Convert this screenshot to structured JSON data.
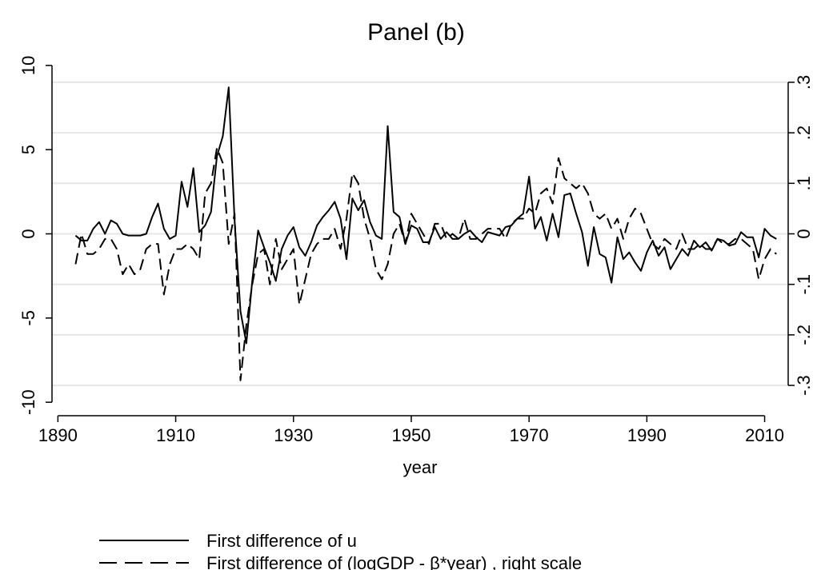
{
  "chart_data": {
    "type": "line",
    "title": "Panel (b)",
    "x_label": "year",
    "x": [
      1893,
      1894,
      1895,
      1896,
      1897,
      1898,
      1899,
      1900,
      1901,
      1902,
      1903,
      1904,
      1905,
      1906,
      1907,
      1908,
      1909,
      1910,
      1911,
      1912,
      1913,
      1914,
      1915,
      1916,
      1917,
      1918,
      1919,
      1920,
      1921,
      1922,
      1923,
      1924,
      1925,
      1926,
      1927,
      1928,
      1929,
      1930,
      1931,
      1932,
      1933,
      1934,
      1935,
      1936,
      1937,
      1938,
      1939,
      1940,
      1941,
      1942,
      1943,
      1944,
      1945,
      1946,
      1947,
      1948,
      1949,
      1950,
      1951,
      1952,
      1953,
      1954,
      1955,
      1956,
      1957,
      1958,
      1959,
      1960,
      1961,
      1962,
      1963,
      1964,
      1965,
      1966,
      1967,
      1968,
      1969,
      1970,
      1971,
      1972,
      1973,
      1974,
      1975,
      1976,
      1977,
      1978,
      1979,
      1980,
      1981,
      1982,
      1983,
      1984,
      1985,
      1986,
      1987,
      1988,
      1989,
      1990,
      1991,
      1992,
      1993,
      1994,
      1995,
      1996,
      1997,
      1998,
      1999,
      2000,
      2001,
      2002,
      2003,
      2004,
      2005,
      2006,
      2007,
      2008,
      2009,
      2010,
      2011,
      2012
    ],
    "series": [
      {
        "name": "First difference of u",
        "color": "#000000",
        "dash": "solid",
        "values": [
          -0.1,
          -0.4,
          -0.4,
          0.3,
          0.7,
          0,
          0.8,
          0.6,
          0,
          -0.1,
          -0.1,
          -0.1,
          0,
          1.0,
          1.8,
          0.3,
          -0.3,
          -0.1,
          3.1,
          1.6,
          3.9,
          0.1,
          0.5,
          1.3,
          4.6,
          5.8,
          8.7,
          0.8,
          -4.6,
          -6.5,
          -2.8,
          0.2,
          -0.8,
          -1.7,
          -2.8,
          -0.9,
          -0.1,
          0.4,
          -0.8,
          -1.3,
          -0.5,
          0.5,
          1.0,
          1.4,
          1.9,
          0.9,
          -1.5,
          2.1,
          1.4,
          2.0,
          0.7,
          -0.1,
          -0.3,
          6.4,
          1.3,
          1.0,
          -0.6,
          0.5,
          0.3,
          -0.5,
          -0.5,
          0.4,
          -0.3,
          0.1,
          -0.3,
          -0.3,
          0,
          0.2,
          -0.2,
          -0.5,
          0.1,
          0,
          -0.1,
          0.4,
          0.5,
          0.9,
          1.2,
          3.4,
          0.3,
          1.0,
          -0.4,
          1.2,
          -0.2,
          2.3,
          2.4,
          1.2,
          0.1,
          -1.9,
          0.4,
          -1.2,
          -1.4,
          -2.9,
          -0.2,
          -1.5,
          -1.1,
          -1.7,
          -2.2,
          -1.1,
          -0.4,
          -1.3,
          -0.8,
          -2.1,
          -1.5,
          -0.9,
          -1.3,
          -0.4,
          -0.8,
          -0.5,
          -1.0,
          -0.3,
          -0.4,
          -0.7,
          -0.6,
          0.1,
          -0.2,
          -0.2,
          -1.4,
          0.3,
          -0.1,
          -0.3
        ]
      },
      {
        "name": "First difference of (logGDP - β*year) , right scale",
        "color": "#000000",
        "dash": "dashed",
        "axis": "y2",
        "values": [
          -0.06,
          0,
          -0.04,
          -0.04,
          -0.03,
          -0.01,
          -0.01,
          -0.03,
          -0.08,
          -0.06,
          -0.08,
          -0.07,
          -0.03,
          -0.02,
          -0.02,
          -0.12,
          -0.06,
          -0.03,
          -0.03,
          -0.02,
          -0.03,
          -0.05,
          0.08,
          0.1,
          0.17,
          0.14,
          -0.02,
          0.04,
          -0.29,
          -0.18,
          -0.1,
          -0.04,
          -0.03,
          -0.1,
          -0.01,
          -0.07,
          -0.05,
          -0.03,
          -0.14,
          -0.09,
          -0.04,
          -0.02,
          -0.01,
          -0.01,
          0.01,
          -0.03,
          0.03,
          0.12,
          0.1,
          0.03,
          -0.01,
          -0.07,
          -0.09,
          -0.06,
          0,
          0.02,
          -0.02,
          0.04,
          0.02,
          0,
          -0.02,
          0.02,
          0.02,
          -0.01,
          0,
          -0.01,
          0.03,
          -0.01,
          -0.01,
          0,
          0.01,
          0.01,
          0.01,
          -0.01,
          0.02,
          0.03,
          0.03,
          0.05,
          0.04,
          0.08,
          0.09,
          0.06,
          0.15,
          0.11,
          0.1,
          0.09,
          0.1,
          0.08,
          0.04,
          0.03,
          0.04,
          0.01,
          0.03,
          -0.01,
          0.03,
          0.05,
          0.04,
          0.01,
          -0.02,
          -0.03,
          -0.01,
          -0.02,
          -0.03,
          0,
          -0.03,
          -0.03,
          -0.02,
          -0.03,
          -0.03,
          -0.01,
          -0.02,
          -0.02,
          -0.01,
          -0.01,
          -0.02,
          -0.03,
          -0.09,
          -0.05,
          -0.03,
          -0.04
        ]
      }
    ],
    "xlim": [
      1889,
      2014
    ],
    "xticks": [
      1890,
      1910,
      1930,
      1950,
      1970,
      1990,
      2010
    ],
    "ylim": [
      -10.8,
      10.8
    ],
    "yticks": [
      -10,
      -5,
      0,
      5,
      10
    ],
    "y2lim": [
      -0.36,
      0.36
    ],
    "y2ticks": [
      {
        "value": -0.3,
        "label": "-.3"
      },
      {
        "value": -0.2,
        "label": "-.2"
      },
      {
        "value": -0.1,
        "label": "-.1"
      },
      0,
      {
        "value": 0.1,
        "label": ".1"
      },
      {
        "value": 0.2,
        "label": ".2"
      },
      {
        "value": 0.3,
        "label": ".3"
      }
    ],
    "grid": true,
    "grid_axis": "y2",
    "legend_position": "bottom"
  }
}
